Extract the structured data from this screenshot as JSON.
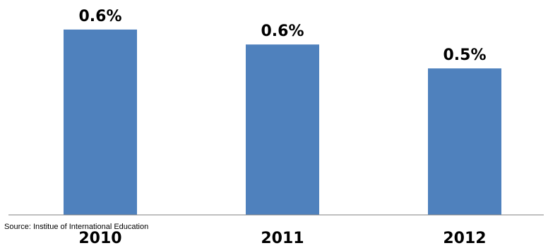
{
  "chart_data": {
    "type": "bar",
    "categories": [
      "2010",
      "2011",
      "2012"
    ],
    "values": [
      0.62,
      0.57,
      0.49
    ],
    "data_labels": [
      "0.6%",
      "0.6%",
      "0.5%"
    ],
    "title": "",
    "xlabel": "",
    "ylabel": "",
    "ylim": [
      0,
      0.7
    ],
    "grid": false,
    "legend": "none",
    "bar_color": "#4F81BD"
  },
  "source": "Source: Institue of International Education"
}
